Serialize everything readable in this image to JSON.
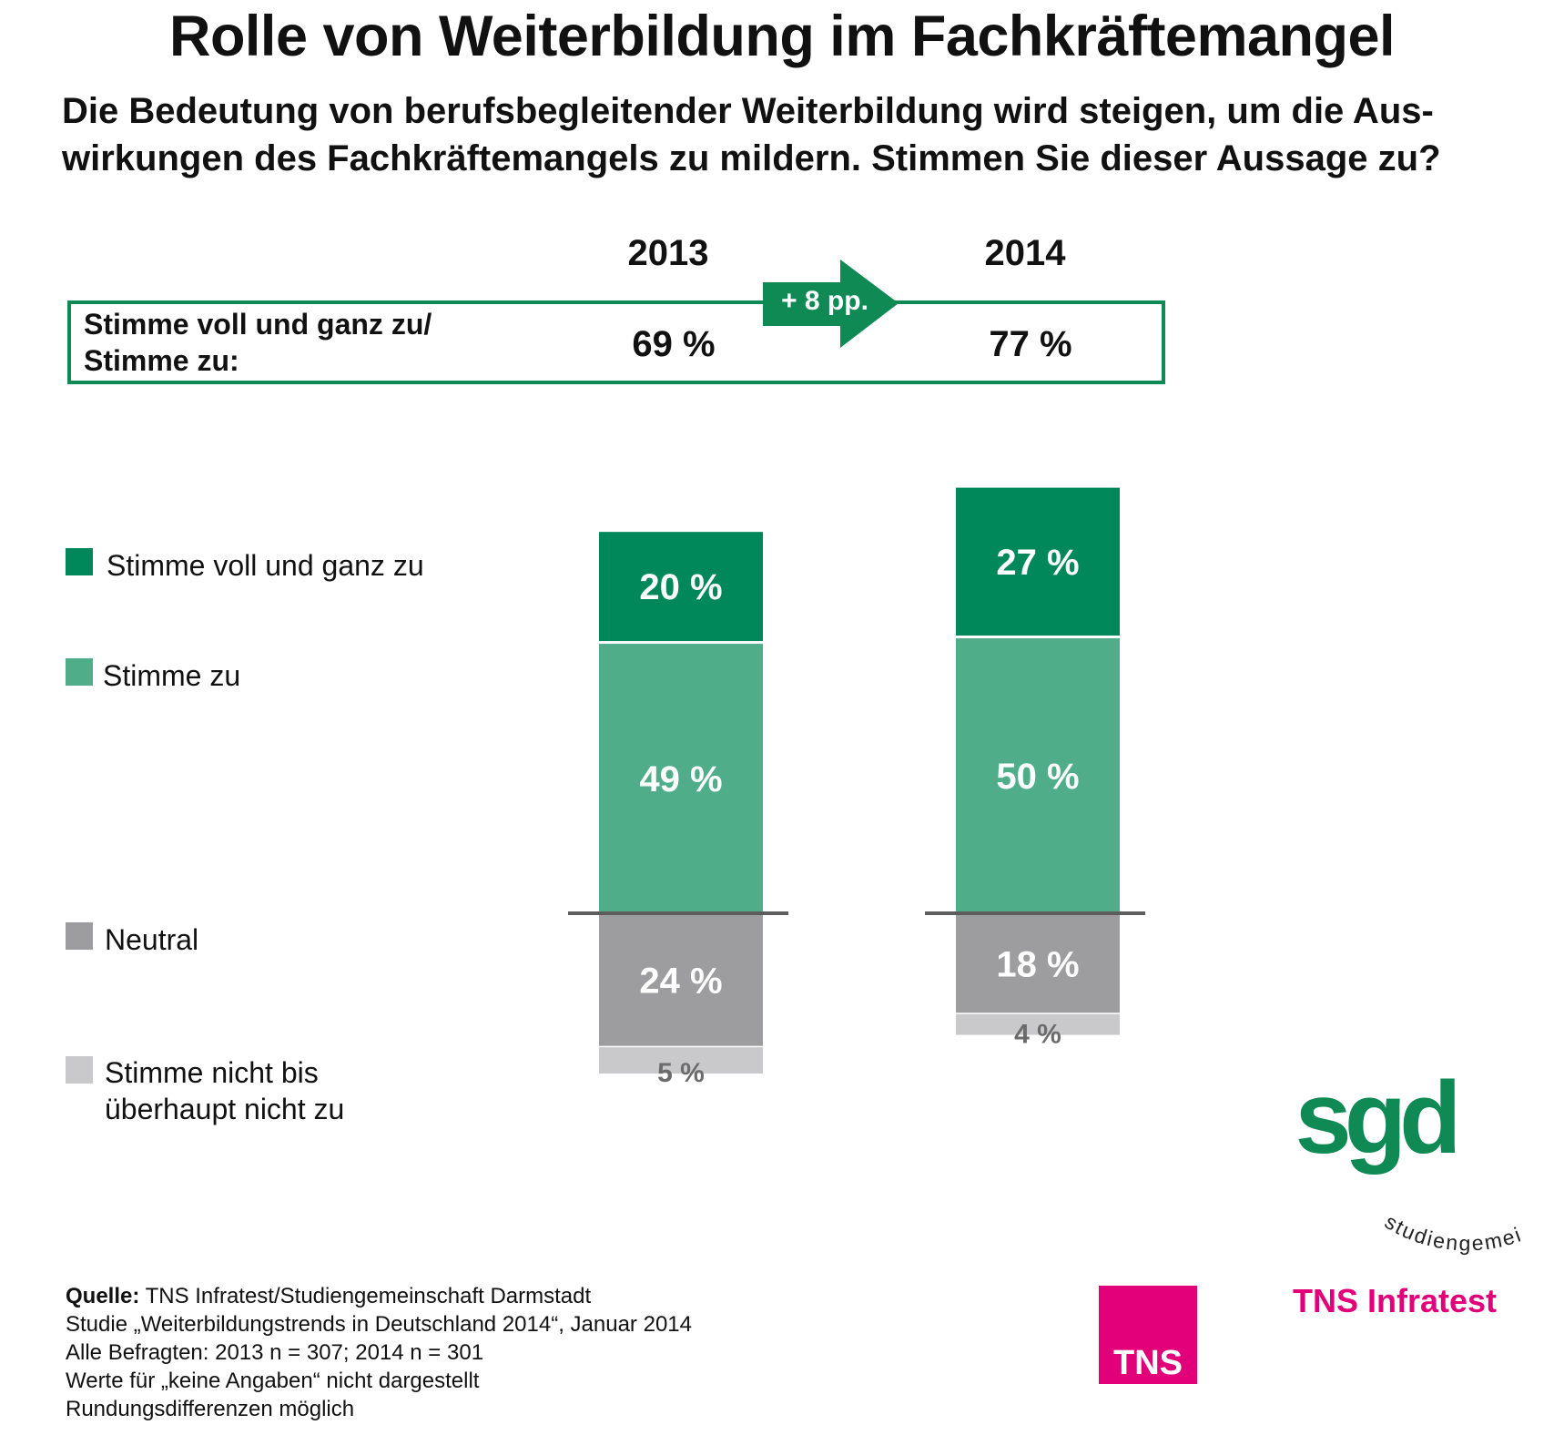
{
  "title": "Rolle von Weiterbildung im Fachkräftemangel",
  "question": {
    "line1": "Die Bedeutung von berufsbegleitender Weiterbildung wird steigen, um die Aus-",
    "line2": "wirkungen des Fachkräftemangels zu mildern. Stimmen Sie dieser Aussage zu?"
  },
  "summary": {
    "label_line1": "Stimme voll und ganz zu/",
    "label_line2": "Stimme zu:",
    "year_2013": "2013",
    "year_2014": "2014",
    "value_2013": "69 %",
    "value_2014": "77 %",
    "delta": "+ 8 pp."
  },
  "legend": [
    {
      "label": "Stimme voll und ganz zu",
      "color": "#00875a"
    },
    {
      "label": "Stimme zu",
      "color": "#4fad8a"
    },
    {
      "label": "Neutral",
      "color": "#9d9d9f"
    },
    {
      "label_line1": "Stimme nicht bis",
      "label_line2": "überhaupt nicht zu",
      "color": "#c9c9cb"
    }
  ],
  "chart_data": {
    "type": "bar",
    "stacked": true,
    "categories": [
      "2013",
      "2014"
    ],
    "series": [
      {
        "name": "Stimme voll und ganz zu",
        "values": [
          20,
          27
        ],
        "labels": [
          "20 %",
          "27 %"
        ],
        "color": "#00875a",
        "label_color": "#ffffff"
      },
      {
        "name": "Stimme zu",
        "values": [
          49,
          50
        ],
        "labels": [
          "49 %",
          "50 %"
        ],
        "color": "#4fad8a",
        "label_color": "#ffffff"
      },
      {
        "name": "Neutral",
        "values": [
          24,
          18
        ],
        "labels": [
          "24 %",
          "18 %"
        ],
        "color": "#9d9d9f",
        "label_color": "#ffffff"
      },
      {
        "name": "Stimme nicht bis überhaupt nicht zu",
        "values": [
          5,
          4
        ],
        "labels": [
          "5 %",
          "4 %"
        ],
        "color": "#c9c9cb",
        "label_color": "#6b6b6b"
      }
    ],
    "baseline_between": [
      "Stimme zu",
      "Neutral"
    ],
    "xlabel": "",
    "ylabel": "",
    "grid": false,
    "legend": "left"
  },
  "source": {
    "label": "Quelle:",
    "line1": " TNS Infratest/Studiengemeinschaft Darmstadt",
    "line2": "Studie „Weiterbildungstrends in Deutschland 2014“, Januar 2014",
    "line3": "Alle Befragten: 2013 n = 307; 2014 n = 301",
    "line4": "Werte für „keine Angaben“ nicht dargestellt",
    "line5": "Rundungsdifferenzen möglich"
  },
  "logos": {
    "sgd_text": "sgd",
    "sgd_ring": "studiengemeinschaft · darmstadt",
    "tns_box": "TNS",
    "tns_name": "TNS Infratest"
  }
}
